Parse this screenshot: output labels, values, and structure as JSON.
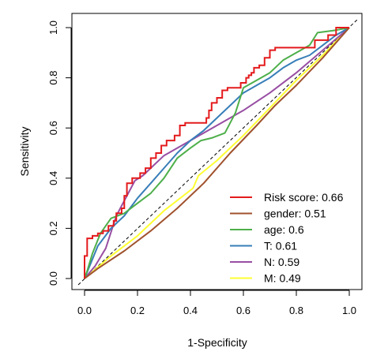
{
  "chart_data": {
    "type": "line",
    "title": "",
    "xlabel": "1-Specificity",
    "ylabel": "Sensitivity",
    "xlim": [
      0,
      1
    ],
    "ylim": [
      0,
      1
    ],
    "xticks": [
      "0.0",
      "0.2",
      "0.4",
      "0.6",
      "0.8",
      "1.0"
    ],
    "yticks": [
      "0.0",
      "0.2",
      "0.4",
      "0.6",
      "0.8",
      "1.0"
    ],
    "grid": false,
    "legend_position": "bottom-right",
    "reference_line": {
      "style": "dashed",
      "color": "#000000",
      "from": [
        0,
        0
      ],
      "to": [
        1,
        1
      ]
    },
    "series": [
      {
        "name": "Risk score: 0.66",
        "color": "#e41a1c",
        "step": true,
        "points": [
          [
            0,
            0
          ],
          [
            0,
            0.09
          ],
          [
            0.01,
            0.09
          ],
          [
            0.01,
            0.16
          ],
          [
            0.03,
            0.16
          ],
          [
            0.03,
            0.17
          ],
          [
            0.05,
            0.17
          ],
          [
            0.05,
            0.18
          ],
          [
            0.07,
            0.18
          ],
          [
            0.07,
            0.19
          ],
          [
            0.09,
            0.19
          ],
          [
            0.09,
            0.21
          ],
          [
            0.11,
            0.21
          ],
          [
            0.11,
            0.23
          ],
          [
            0.12,
            0.23
          ],
          [
            0.12,
            0.26
          ],
          [
            0.14,
            0.26
          ],
          [
            0.14,
            0.28
          ],
          [
            0.15,
            0.28
          ],
          [
            0.15,
            0.33
          ],
          [
            0.16,
            0.33
          ],
          [
            0.16,
            0.38
          ],
          [
            0.18,
            0.38
          ],
          [
            0.18,
            0.4
          ],
          [
            0.21,
            0.4
          ],
          [
            0.21,
            0.42
          ],
          [
            0.23,
            0.42
          ],
          [
            0.23,
            0.44
          ],
          [
            0.25,
            0.44
          ],
          [
            0.25,
            0.48
          ],
          [
            0.27,
            0.48
          ],
          [
            0.27,
            0.5
          ],
          [
            0.29,
            0.5
          ],
          [
            0.29,
            0.53
          ],
          [
            0.31,
            0.53
          ],
          [
            0.31,
            0.55
          ],
          [
            0.34,
            0.55
          ],
          [
            0.34,
            0.57
          ],
          [
            0.36,
            0.57
          ],
          [
            0.36,
            0.61
          ],
          [
            0.38,
            0.61
          ],
          [
            0.38,
            0.62
          ],
          [
            0.46,
            0.62
          ],
          [
            0.46,
            0.64
          ],
          [
            0.47,
            0.64
          ],
          [
            0.47,
            0.67
          ],
          [
            0.48,
            0.67
          ],
          [
            0.48,
            0.7
          ],
          [
            0.5,
            0.7
          ],
          [
            0.5,
            0.72
          ],
          [
            0.52,
            0.72
          ],
          [
            0.52,
            0.75
          ],
          [
            0.54,
            0.75
          ],
          [
            0.54,
            0.76
          ],
          [
            0.59,
            0.76
          ],
          [
            0.59,
            0.78
          ],
          [
            0.61,
            0.78
          ],
          [
            0.61,
            0.8
          ],
          [
            0.62,
            0.8
          ],
          [
            0.62,
            0.81
          ],
          [
            0.63,
            0.81
          ],
          [
            0.63,
            0.82
          ],
          [
            0.64,
            0.82
          ],
          [
            0.64,
            0.84
          ],
          [
            0.66,
            0.84
          ],
          [
            0.66,
            0.85
          ],
          [
            0.68,
            0.85
          ],
          [
            0.68,
            0.88
          ],
          [
            0.7,
            0.88
          ],
          [
            0.7,
            0.91
          ],
          [
            0.72,
            0.91
          ],
          [
            0.72,
            0.92
          ],
          [
            0.87,
            0.92
          ],
          [
            0.87,
            0.95
          ],
          [
            0.92,
            0.95
          ],
          [
            0.92,
            0.97
          ],
          [
            0.95,
            0.97
          ],
          [
            0.95,
            1.0
          ],
          [
            1.0,
            1.0
          ]
        ]
      },
      {
        "name": "gender: 0.51",
        "color": "#a0522d",
        "step": false,
        "points": [
          [
            0,
            0
          ],
          [
            0.05,
            0.04
          ],
          [
            0.15,
            0.11
          ],
          [
            0.25,
            0.19
          ],
          [
            0.35,
            0.28
          ],
          [
            0.45,
            0.38
          ],
          [
            0.55,
            0.5
          ],
          [
            0.65,
            0.61
          ],
          [
            0.72,
            0.69
          ],
          [
            0.8,
            0.77
          ],
          [
            0.9,
            0.88
          ],
          [
            1.0,
            1.0
          ]
        ]
      },
      {
        "name": "age: 0.6",
        "color": "#4daf4a",
        "step": false,
        "points": [
          [
            0,
            0
          ],
          [
            0.01,
            0.03
          ],
          [
            0.03,
            0.1
          ],
          [
            0.06,
            0.18
          ],
          [
            0.1,
            0.24
          ],
          [
            0.15,
            0.26
          ],
          [
            0.2,
            0.3
          ],
          [
            0.25,
            0.34
          ],
          [
            0.3,
            0.4
          ],
          [
            0.35,
            0.48
          ],
          [
            0.4,
            0.52
          ],
          [
            0.44,
            0.55
          ],
          [
            0.48,
            0.56
          ],
          [
            0.53,
            0.58
          ],
          [
            0.57,
            0.66
          ],
          [
            0.6,
            0.76
          ],
          [
            0.65,
            0.79
          ],
          [
            0.7,
            0.82
          ],
          [
            0.75,
            0.87
          ],
          [
            0.8,
            0.9
          ],
          [
            0.85,
            0.93
          ],
          [
            0.88,
            0.98
          ],
          [
            0.95,
            0.99
          ],
          [
            1.0,
            1.0
          ]
        ]
      },
      {
        "name": "T: 0.61",
        "color": "#377eb8",
        "step": false,
        "points": [
          [
            0,
            0
          ],
          [
            0.05,
            0.13
          ],
          [
            0.1,
            0.2
          ],
          [
            0.15,
            0.25
          ],
          [
            0.2,
            0.32
          ],
          [
            0.25,
            0.38
          ],
          [
            0.3,
            0.44
          ],
          [
            0.35,
            0.5
          ],
          [
            0.4,
            0.55
          ],
          [
            0.45,
            0.59
          ],
          [
            0.5,
            0.64
          ],
          [
            0.55,
            0.69
          ],
          [
            0.6,
            0.74
          ],
          [
            0.65,
            0.77
          ],
          [
            0.7,
            0.8
          ],
          [
            0.75,
            0.84
          ],
          [
            0.8,
            0.87
          ],
          [
            0.85,
            0.89
          ],
          [
            0.9,
            0.93
          ],
          [
            0.95,
            0.97
          ],
          [
            1.0,
            1.0
          ]
        ]
      },
      {
        "name": "N: 0.59",
        "color": "#984ea3",
        "step": false,
        "points": [
          [
            0,
            0
          ],
          [
            0.04,
            0.05
          ],
          [
            0.08,
            0.12
          ],
          [
            0.12,
            0.25
          ],
          [
            0.15,
            0.31
          ],
          [
            0.19,
            0.39
          ],
          [
            0.22,
            0.41
          ],
          [
            0.26,
            0.45
          ],
          [
            0.3,
            0.49
          ],
          [
            0.4,
            0.55
          ],
          [
            0.5,
            0.61
          ],
          [
            0.6,
            0.67
          ],
          [
            0.7,
            0.74
          ],
          [
            0.8,
            0.82
          ],
          [
            0.9,
            0.91
          ],
          [
            1.0,
            1.0
          ]
        ]
      },
      {
        "name": "M: 0.49",
        "color": "#ffff33",
        "step": false,
        "points": [
          [
            0,
            0
          ],
          [
            0.1,
            0.09
          ],
          [
            0.2,
            0.17
          ],
          [
            0.3,
            0.27
          ],
          [
            0.41,
            0.36
          ],
          [
            0.43,
            0.41
          ],
          [
            0.5,
            0.47
          ],
          [
            0.6,
            0.57
          ],
          [
            0.7,
            0.68
          ],
          [
            0.8,
            0.79
          ],
          [
            0.9,
            0.89
          ],
          [
            1.0,
            1.0
          ]
        ]
      }
    ]
  }
}
